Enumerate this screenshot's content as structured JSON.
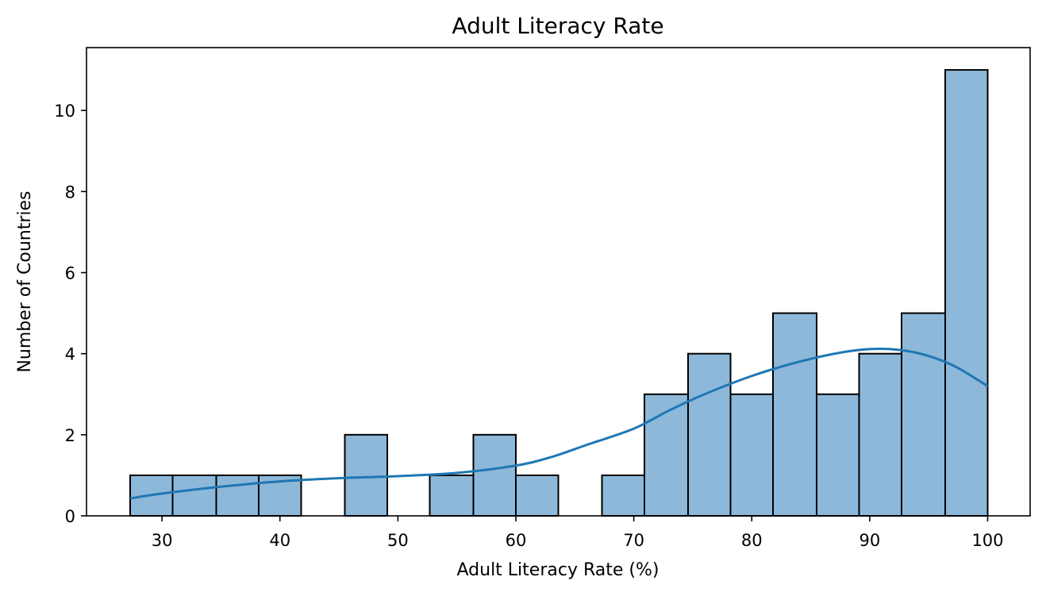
{
  "chart_data": {
    "type": "bar",
    "title": "Adult Literacy Rate",
    "xlabel": "Adult Literacy Rate (%)",
    "ylabel": "Number of Countries",
    "xlim": [
      23.6,
      103.6
    ],
    "ylim": [
      0,
      11.55
    ],
    "grid": false,
    "x_ticks": [
      30,
      40,
      50,
      60,
      70,
      80,
      90,
      100
    ],
    "y_ticks": [
      0,
      2,
      4,
      6,
      8,
      10
    ],
    "bins": [
      {
        "x0": 27.3,
        "x1": 30.9,
        "count": 1
      },
      {
        "x0": 30.9,
        "x1": 34.6,
        "count": 1
      },
      {
        "x0": 34.6,
        "x1": 38.2,
        "count": 1
      },
      {
        "x0": 38.2,
        "x1": 41.8,
        "count": 1
      },
      {
        "x0": 41.8,
        "x1": 45.5,
        "count": 0
      },
      {
        "x0": 45.5,
        "x1": 49.1,
        "count": 2
      },
      {
        "x0": 49.1,
        "x1": 52.7,
        "count": 0
      },
      {
        "x0": 52.7,
        "x1": 56.4,
        "count": 1
      },
      {
        "x0": 56.4,
        "x1": 60.0,
        "count": 2
      },
      {
        "x0": 60.0,
        "x1": 63.6,
        "count": 1
      },
      {
        "x0": 63.6,
        "x1": 67.3,
        "count": 0
      },
      {
        "x0": 67.3,
        "x1": 70.9,
        "count": 1
      },
      {
        "x0": 70.9,
        "x1": 74.6,
        "count": 3
      },
      {
        "x0": 74.6,
        "x1": 78.2,
        "count": 4
      },
      {
        "x0": 78.2,
        "x1": 81.8,
        "count": 3
      },
      {
        "x0": 81.8,
        "x1": 85.5,
        "count": 5
      },
      {
        "x0": 85.5,
        "x1": 89.1,
        "count": 3
      },
      {
        "x0": 89.1,
        "x1": 92.7,
        "count": 4
      },
      {
        "x0": 92.7,
        "x1": 96.4,
        "count": 5
      },
      {
        "x0": 96.4,
        "x1": 100.0,
        "count": 11
      }
    ],
    "kde_x": [
      27.3,
      30,
      35,
      40,
      45,
      50,
      55,
      60,
      63,
      66,
      70,
      73,
      76,
      80,
      84,
      88,
      91,
      94,
      97,
      100
    ],
    "kde_y": [
      0.43,
      0.55,
      0.72,
      0.85,
      0.93,
      0.98,
      1.06,
      1.24,
      1.45,
      1.75,
      2.15,
      2.6,
      3.0,
      3.45,
      3.8,
      4.05,
      4.12,
      4.02,
      3.72,
      3.2
    ],
    "colors": {
      "bar_fill": "#8db8d9",
      "bar_edge": "#000000",
      "kde_line": "#1f77b4"
    }
  }
}
